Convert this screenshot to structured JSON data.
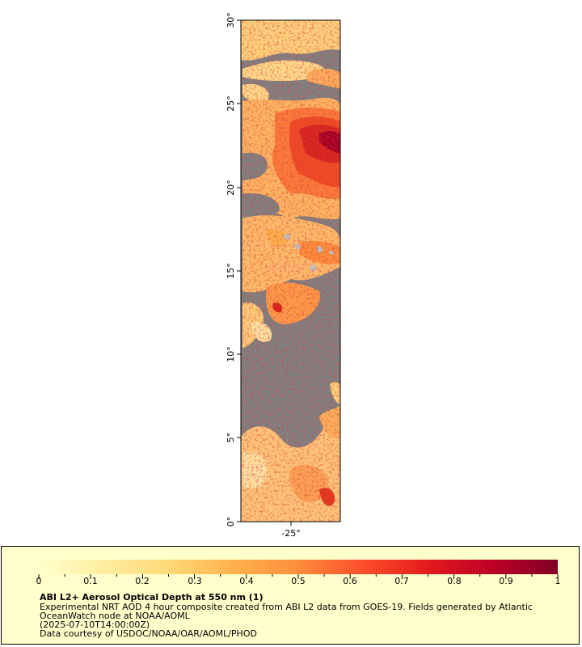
{
  "map": {
    "lat_ticks": [
      "0°",
      "5°",
      "10°",
      "15°",
      "20°",
      "25°",
      "30°"
    ],
    "lon_ticks": [
      "-25°"
    ],
    "lat_range": [
      0,
      30
    ],
    "no_data_color": "#808080",
    "land_color": "#c0c0c0"
  },
  "legend": {
    "tick_labels": [
      "0",
      "0.1",
      "0.2",
      "0.3",
      "0.4",
      "0.5",
      "0.6",
      "0.7",
      "0.8",
      "0.9",
      "1"
    ],
    "range": [
      0,
      1
    ],
    "colors": [
      "#ffffcc",
      "#ffeda0",
      "#fed976",
      "#feb24c",
      "#fd8d3c",
      "#fc4e2a",
      "#e31a1c",
      "#bd0026",
      "#800026"
    ],
    "title": "ABI L2+ Aerosol Optical Depth at 550 nm (1)",
    "line1": "Experimental NRT AOD 4 hour composite created from ABI L2 data from GOES-19. Fields generated by Atlantic",
    "line2": "OceanWatch node at NOAA/AOML",
    "line3": "(2025-07-10T14:00:00Z)",
    "line4": "Data courtesy of USDOC/NOAA/OAR/AOML/PHOD"
  }
}
